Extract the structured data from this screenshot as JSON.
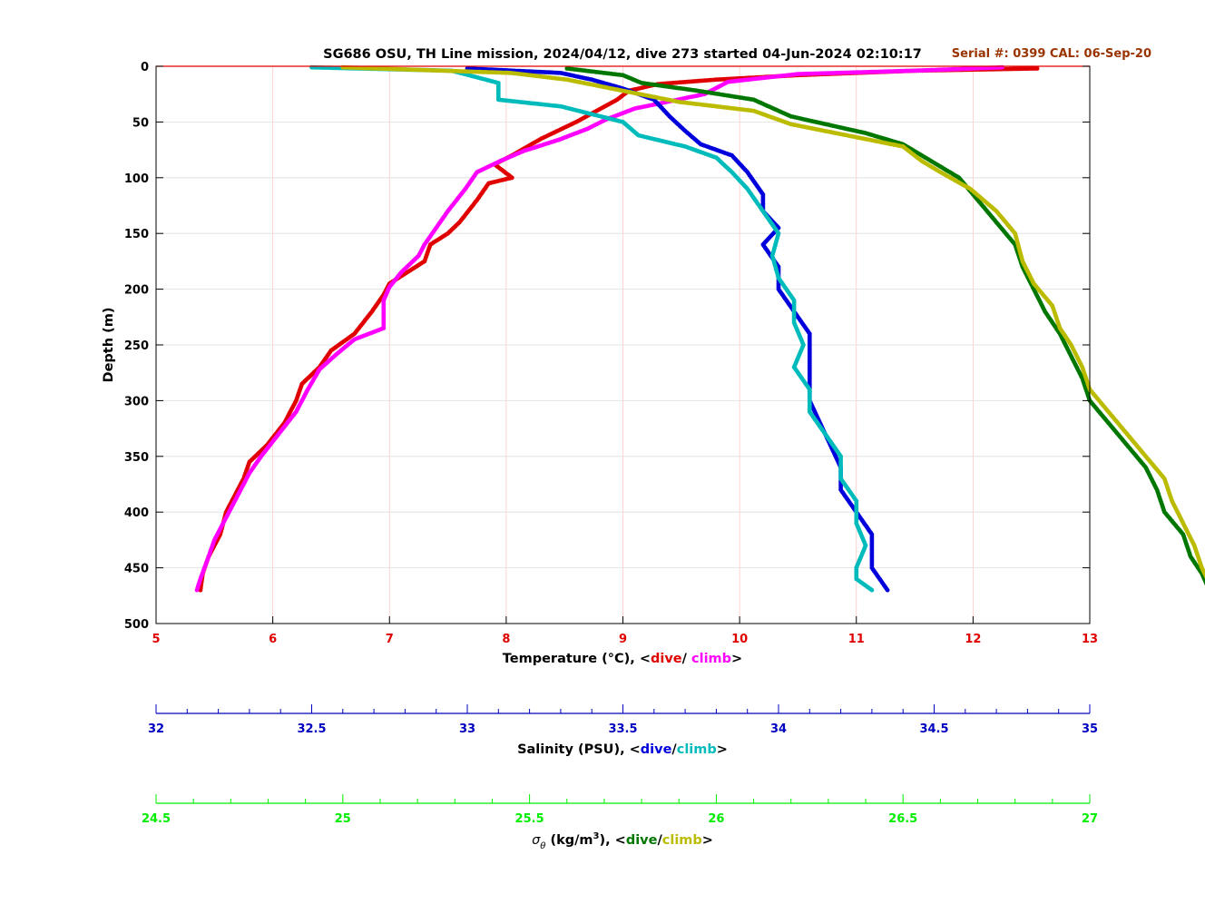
{
  "chart_data": {
    "type": "line",
    "title": "SG686 OSU, TH Line mission, 2024/04/12, dive 273 started 04-Jun-2024 02:10:17",
    "serial_text": "Serial #: 0399  CAL: 06-Sep-20",
    "ylabel": "Depth (m)",
    "ylim": [
      0,
      500
    ],
    "y_ticks": [
      "0",
      "50",
      "100",
      "150",
      "200",
      "250",
      "300",
      "350",
      "400",
      "450",
      "500"
    ],
    "y_reversed": true,
    "grid": true,
    "axes": {
      "temperature": {
        "label_prefix": "Temperature (°C), <",
        "dive": "dive",
        "sep": "/ ",
        "climb": "climb",
        "label_suffix": ">",
        "xlim": [
          5,
          13
        ],
        "ticks": [
          "5",
          "6",
          "7",
          "8",
          "9",
          "10",
          "11",
          "12",
          "13"
        ],
        "tick_color": "#e00000"
      },
      "salinity": {
        "label_prefix": "Salinity (PSU), <",
        "dive": "dive",
        "sep": "/",
        "climb": "climb",
        "label_suffix": ">",
        "xlim": [
          32,
          35
        ],
        "ticks": [
          "32",
          "32.5",
          "33",
          "33.5",
          "34",
          "34.5",
          "35"
        ],
        "tick_color": "#0000c0"
      },
      "density": {
        "label_sigma": "σ",
        "label_theta": "θ",
        "label_units": " (kg/m",
        "label_exp": "3",
        "label_close": "), <",
        "dive": "dive",
        "sep": "/",
        "climb": "climb",
        "label_suffix": ">",
        "xlim": [
          24.5,
          27
        ],
        "ticks": [
          "24.5",
          "25",
          "25.5",
          "26",
          "26.5",
          "27"
        ],
        "tick_color": "#00ee00"
      }
    },
    "colors": {
      "temp_dive": "#e00000",
      "temp_climb": "#ff00ff",
      "sal_dive": "#0000dd",
      "sal_climb": "#00bbbb",
      "dens_dive": "#007700",
      "dens_climb": "#bbbb00",
      "serial": "#993300"
    },
    "series": [
      {
        "key": "temp_dive",
        "axis": "temperature",
        "points": [
          [
            12.55,
            2
          ],
          [
            11.5,
            4
          ],
          [
            10.5,
            8
          ],
          [
            9.8,
            12
          ],
          [
            9.3,
            16
          ],
          [
            9.05,
            22
          ],
          [
            8.95,
            30
          ],
          [
            8.6,
            50
          ],
          [
            8.3,
            65
          ],
          [
            8.05,
            80
          ],
          [
            7.9,
            88
          ],
          [
            8.05,
            100
          ],
          [
            7.85,
            105
          ],
          [
            7.75,
            120
          ],
          [
            7.6,
            140
          ],
          [
            7.5,
            150
          ],
          [
            7.35,
            160
          ],
          [
            7.3,
            175
          ],
          [
            7.15,
            185
          ],
          [
            7.0,
            195
          ],
          [
            6.95,
            205
          ],
          [
            6.85,
            220
          ],
          [
            6.7,
            240
          ],
          [
            6.5,
            255
          ],
          [
            6.4,
            270
          ],
          [
            6.25,
            285
          ],
          [
            6.2,
            300
          ],
          [
            6.1,
            320
          ],
          [
            5.95,
            340
          ],
          [
            5.8,
            355
          ],
          [
            5.75,
            370
          ],
          [
            5.7,
            380
          ],
          [
            5.6,
            400
          ],
          [
            5.55,
            420
          ],
          [
            5.45,
            440
          ],
          [
            5.4,
            455
          ],
          [
            5.38,
            470
          ]
        ]
      },
      {
        "key": "temp_climb",
        "axis": "temperature",
        "points": [
          [
            12.25,
            1
          ],
          [
            11.5,
            4
          ],
          [
            10.5,
            7
          ],
          [
            9.9,
            14
          ],
          [
            9.7,
            25
          ],
          [
            9.1,
            38
          ],
          [
            8.85,
            48
          ],
          [
            8.7,
            56
          ],
          [
            8.45,
            66
          ],
          [
            8.15,
            76
          ],
          [
            7.95,
            85
          ],
          [
            7.75,
            95
          ],
          [
            7.65,
            110
          ],
          [
            7.5,
            130
          ],
          [
            7.4,
            145
          ],
          [
            7.3,
            160
          ],
          [
            7.25,
            170
          ],
          [
            7.1,
            185
          ],
          [
            7.0,
            198
          ],
          [
            6.95,
            210
          ],
          [
            6.95,
            235
          ],
          [
            6.7,
            245
          ],
          [
            6.55,
            258
          ],
          [
            6.4,
            272
          ],
          [
            6.3,
            290
          ],
          [
            6.2,
            310
          ],
          [
            6.05,
            330
          ],
          [
            5.9,
            350
          ],
          [
            5.8,
            365
          ],
          [
            5.7,
            385
          ],
          [
            5.6,
            405
          ],
          [
            5.5,
            425
          ],
          [
            5.45,
            440
          ],
          [
            5.38,
            460
          ],
          [
            5.35,
            470
          ]
        ]
      },
      {
        "key": "sal_dive",
        "axis": "salinity",
        "points": [
          [
            33.0,
            2
          ],
          [
            33.3,
            6
          ],
          [
            33.4,
            12
          ],
          [
            33.5,
            20
          ],
          [
            33.6,
            30
          ],
          [
            33.65,
            45
          ],
          [
            33.7,
            58
          ],
          [
            33.75,
            70
          ],
          [
            33.85,
            80
          ],
          [
            33.9,
            95
          ],
          [
            33.95,
            115
          ],
          [
            33.95,
            130
          ],
          [
            34.0,
            145
          ],
          [
            33.95,
            160
          ],
          [
            34.0,
            180
          ],
          [
            34.0,
            200
          ],
          [
            34.05,
            220
          ],
          [
            34.1,
            240
          ],
          [
            34.1,
            260
          ],
          [
            34.1,
            280
          ],
          [
            34.1,
            300
          ],
          [
            34.15,
            330
          ],
          [
            34.2,
            360
          ],
          [
            34.2,
            380
          ],
          [
            34.25,
            400
          ],
          [
            34.3,
            420
          ],
          [
            34.3,
            450
          ],
          [
            34.35,
            470
          ]
        ]
      },
      {
        "key": "sal_climb",
        "axis": "salinity",
        "points": [
          [
            32.5,
            1
          ],
          [
            32.95,
            4
          ],
          [
            33.1,
            15
          ],
          [
            33.1,
            30
          ],
          [
            33.3,
            36
          ],
          [
            33.5,
            50
          ],
          [
            33.55,
            62
          ],
          [
            33.7,
            72
          ],
          [
            33.8,
            82
          ],
          [
            33.85,
            95
          ],
          [
            33.9,
            110
          ],
          [
            33.95,
            130
          ],
          [
            34.0,
            150
          ],
          [
            33.98,
            170
          ],
          [
            34.0,
            190
          ],
          [
            34.05,
            210
          ],
          [
            34.05,
            230
          ],
          [
            34.08,
            250
          ],
          [
            34.05,
            270
          ],
          [
            34.1,
            290
          ],
          [
            34.1,
            310
          ],
          [
            34.15,
            330
          ],
          [
            34.2,
            350
          ],
          [
            34.2,
            370
          ],
          [
            34.25,
            390
          ],
          [
            34.25,
            410
          ],
          [
            34.28,
            430
          ],
          [
            34.25,
            450
          ],
          [
            34.25,
            460
          ],
          [
            34.3,
            470
          ]
        ]
      },
      {
        "key": "dens_dive",
        "axis": "density",
        "points": [
          [
            25.6,
            2
          ],
          [
            25.75,
            8
          ],
          [
            25.8,
            15
          ],
          [
            25.95,
            22
          ],
          [
            26.1,
            30
          ],
          [
            26.2,
            45
          ],
          [
            26.4,
            60
          ],
          [
            26.5,
            70
          ],
          [
            26.55,
            80
          ],
          [
            26.6,
            90
          ],
          [
            26.65,
            100
          ],
          [
            26.7,
            120
          ],
          [
            26.75,
            140
          ],
          [
            26.8,
            160
          ],
          [
            26.82,
            180
          ],
          [
            26.85,
            200
          ],
          [
            26.88,
            220
          ],
          [
            26.92,
            240
          ],
          [
            26.95,
            260
          ],
          [
            26.98,
            280
          ],
          [
            27.0,
            300
          ],
          [
            27.05,
            320
          ],
          [
            27.1,
            340
          ],
          [
            27.15,
            360
          ],
          [
            27.18,
            380
          ],
          [
            27.2,
            400
          ],
          [
            27.25,
            420
          ],
          [
            27.27,
            440
          ],
          [
            27.3,
            455
          ],
          [
            27.32,
            470
          ]
        ]
      },
      {
        "key": "dens_climb",
        "axis": "density",
        "points": [
          [
            25.0,
            1
          ],
          [
            25.45,
            6
          ],
          [
            25.6,
            12
          ],
          [
            25.75,
            22
          ],
          [
            25.9,
            32
          ],
          [
            26.1,
            40
          ],
          [
            26.2,
            52
          ],
          [
            26.35,
            62
          ],
          [
            26.5,
            72
          ],
          [
            26.55,
            85
          ],
          [
            26.6,
            95
          ],
          [
            26.68,
            110
          ],
          [
            26.75,
            130
          ],
          [
            26.8,
            150
          ],
          [
            26.82,
            175
          ],
          [
            26.85,
            195
          ],
          [
            26.9,
            215
          ],
          [
            26.92,
            235
          ],
          [
            26.95,
            250
          ],
          [
            26.98,
            270
          ],
          [
            27.0,
            290
          ],
          [
            27.05,
            310
          ],
          [
            27.1,
            330
          ],
          [
            27.15,
            350
          ],
          [
            27.2,
            370
          ],
          [
            27.22,
            390
          ],
          [
            27.25,
            410
          ],
          [
            27.28,
            430
          ],
          [
            27.3,
            450
          ],
          [
            27.33,
            470
          ]
        ]
      }
    ]
  }
}
